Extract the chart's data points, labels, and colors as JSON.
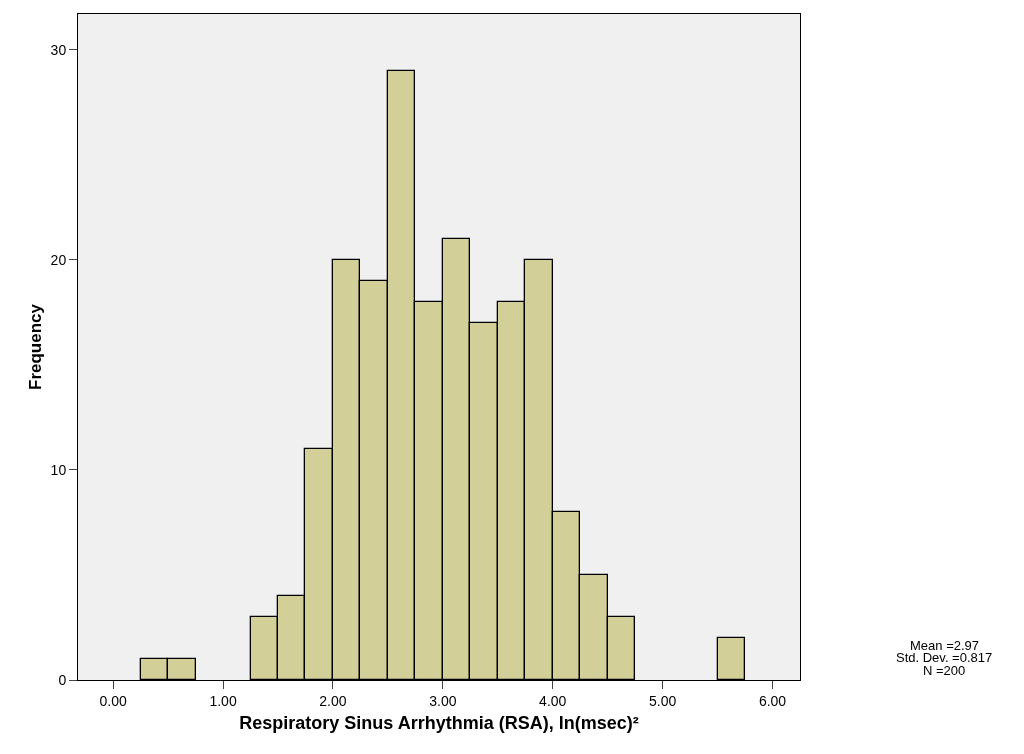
{
  "chart_data": {
    "type": "histogram",
    "xlabel": "Respiratory Sinus Arrhythmia (RSA), ln(msec)²",
    "ylabel": "Frequency",
    "bins": [
      0.25,
      0.5,
      0.75,
      1.0,
      1.25,
      1.5,
      1.75,
      2.0,
      2.25,
      2.5,
      2.75,
      3.0,
      3.25,
      3.5,
      3.75,
      4.0,
      4.25,
      4.5,
      4.75,
      5.0,
      5.25,
      5.5,
      5.75
    ],
    "values": [
      1,
      1,
      0,
      0,
      3,
      4,
      11,
      20,
      19,
      29,
      18,
      21,
      17,
      18,
      20,
      8,
      5,
      3,
      0,
      0,
      0,
      2
    ],
    "color": "#d3cf98",
    "xlim": [
      -0.32,
      6.25
    ],
    "xticks": [
      {
        "value": 0,
        "label": "0.00"
      },
      {
        "value": 1,
        "label": "1.00"
      },
      {
        "value": 2,
        "label": "2.00"
      },
      {
        "value": 3,
        "label": "3.00"
      },
      {
        "value": 4,
        "label": "4.00"
      },
      {
        "value": 5,
        "label": "5.00"
      },
      {
        "value": 6,
        "label": "6.00"
      }
    ],
    "ylim": [
      0,
      31.7
    ],
    "yticks": [
      0,
      10,
      20,
      30
    ],
    "grid": false,
    "legend": false,
    "annotations": [
      "Mean =2.97",
      "Std. Dev. =0.817",
      "N =200"
    ]
  }
}
